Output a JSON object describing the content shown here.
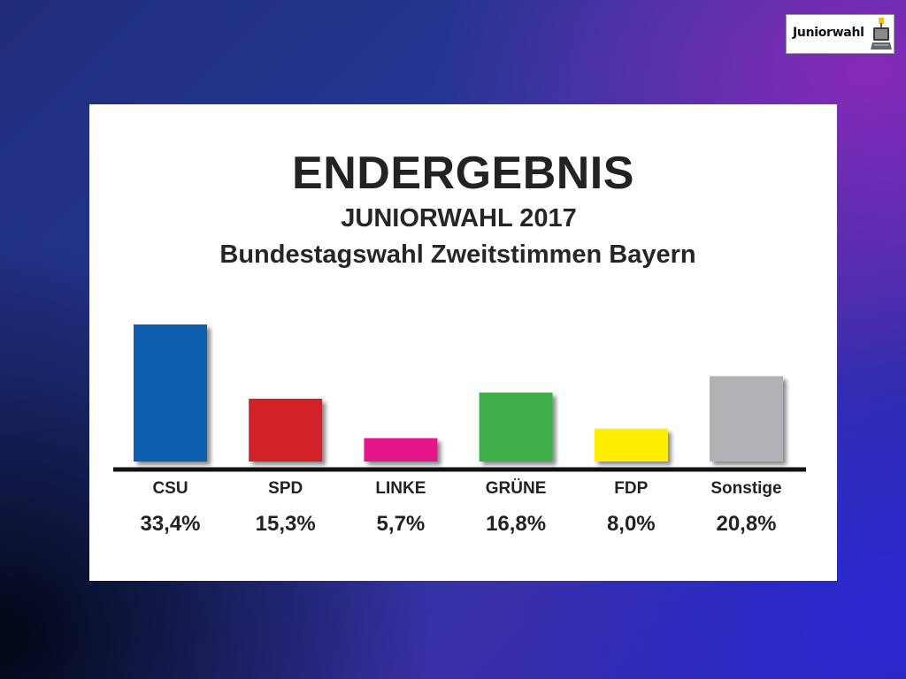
{
  "logo": {
    "text": "Juniorwahl"
  },
  "chart_data": {
    "type": "bar",
    "title": "ENDERGEBNIS",
    "subtitle": "JUNIORWAHL 2017",
    "subtitle2": "Bundestagswahl Zweitstimmen Bayern",
    "categories": [
      "CSU",
      "SPD",
      "LINKE",
      "GRÜNE",
      "FDP",
      "Sonstige"
    ],
    "values": [
      33.4,
      15.3,
      5.7,
      16.8,
      8.0,
      20.8
    ],
    "value_labels": [
      "33,4%",
      "15,3%",
      "5,7%",
      "16,8%",
      "8,0%",
      "20,8%"
    ],
    "colors": [
      "#0f5fb0",
      "#d1232a",
      "#e5148c",
      "#3fae49",
      "#ffee00",
      "#b1b2b6"
    ],
    "ylim": [
      0,
      35
    ],
    "grid": false,
    "legend": "none"
  }
}
